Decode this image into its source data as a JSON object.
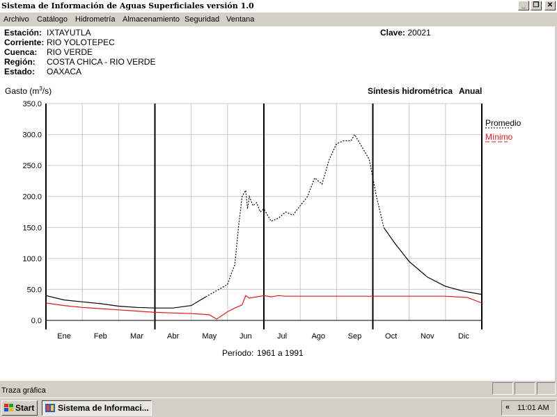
{
  "window": {
    "title": "Sistema de Información de Aguas Superficiales  versión 1.0",
    "buttons": {
      "minimize": "_",
      "restore": "❐",
      "close": "✕"
    }
  },
  "menu": [
    "Archivo",
    "Catálogo",
    "Hidrometría",
    "Almacenamiento",
    "Seguridad",
    "Ventana"
  ],
  "station": {
    "estacion_label": "Estación:",
    "estacion": "IXTAYUTLA",
    "corriente_label": "Corriente:",
    "corriente": "RIO YOLOTEPEC",
    "cuenca_label": "Cuenca:",
    "cuenca": "RIO VERDE",
    "region_label": "Región:",
    "region": "COSTA CHICA - RIO VERDE",
    "estado_label": "Estado:",
    "estado": "OAXACA",
    "clave_label": "Clave:",
    "clave": "20021"
  },
  "chart_data": {
    "type": "line",
    "ylabel": "Gasto (m",
    "ylabel_sup": "3",
    "ylabel_end": "/s)",
    "title_left": "Síntesis hidrométrica",
    "title_right": "Anual",
    "ylim": [
      0,
      350
    ],
    "yticks": [
      "0.0",
      "50.0",
      "100.0",
      "150.0",
      "200.0",
      "250.0",
      "300.0",
      "350.0"
    ],
    "categories": [
      "Ene",
      "Feb",
      "Mar",
      "Abr",
      "May",
      "Jun",
      "Jul",
      "Ago",
      "Sep",
      "Oct",
      "Nov",
      "Dic"
    ],
    "grid": true,
    "legend_position": "right",
    "series": [
      {
        "name": "Promedio",
        "color": "#000000",
        "x": [
          0,
          0.5,
          1,
          1.5,
          2,
          2.5,
          3,
          3.5,
          4,
          4.4,
          4.7,
          5.0,
          5.1,
          5.2,
          5.3,
          5.4,
          5.5,
          5.55,
          5.6,
          5.7,
          5.8,
          5.9,
          6.0,
          6.2,
          6.4,
          6.6,
          6.8,
          7.0,
          7.2,
          7.4,
          7.6,
          7.8,
          8.0,
          8.2,
          8.4,
          8.5,
          8.7,
          8.9,
          9.1,
          9.3,
          9.6,
          10.0,
          10.5,
          11.0,
          11.5,
          12.0
        ],
        "y": [
          40,
          33,
          30,
          27,
          23,
          21,
          20,
          20,
          24,
          38,
          48,
          58,
          75,
          90,
          150,
          200,
          210,
          180,
          200,
          185,
          190,
          175,
          180,
          160,
          165,
          175,
          170,
          185,
          200,
          230,
          220,
          260,
          285,
          290,
          290,
          300,
          280,
          260,
          200,
          150,
          125,
          95,
          70,
          55,
          47,
          42
        ]
      },
      {
        "name": "Mínimo",
        "color": "#e01818",
        "x": [
          0,
          0.5,
          1,
          1.5,
          2,
          2.5,
          3,
          3.5,
          4,
          4.3,
          4.5,
          4.7,
          5.0,
          5.2,
          5.4,
          5.5,
          5.6,
          5.8,
          6.0,
          6.2,
          6.4,
          6.6,
          7.0,
          8.0,
          9.0,
          10.0,
          11.0,
          11.6,
          12.0
        ],
        "y": [
          28,
          24,
          21,
          19,
          17,
          15,
          13,
          12,
          11,
          10,
          9,
          2,
          14,
          20,
          25,
          40,
          36,
          38,
          40,
          38,
          40,
          39,
          39,
          39,
          39,
          39,
          39,
          37,
          28
        ]
      }
    ],
    "periodo_label": "Período:",
    "periodo": "1961 a 1991"
  },
  "statusbar": {
    "text": "Traza gráfica"
  },
  "taskbar": {
    "start": "Start",
    "task": "Sistema de Informaci...",
    "tray_arrow": "«",
    "clock": "11:01 AM"
  }
}
